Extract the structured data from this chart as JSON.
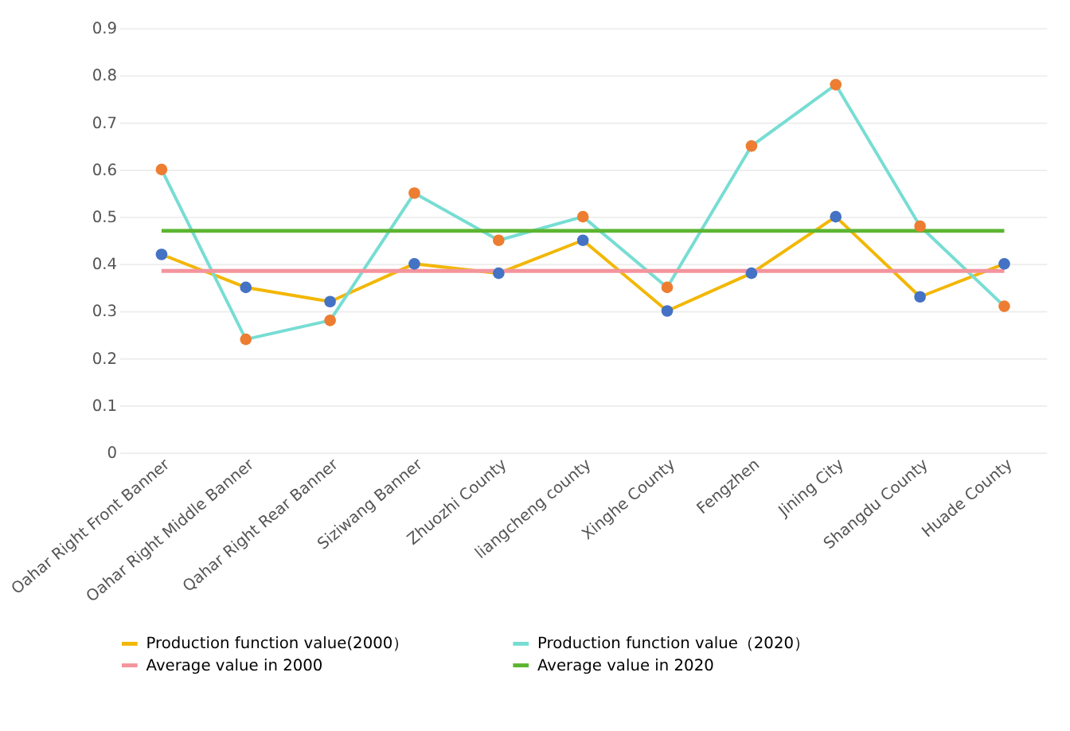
{
  "chart_data": {
    "type": "line",
    "categories": [
      "Oahar Right Front Banner",
      "Oahar Right Middle Banner",
      "Qahar Right Rear Banner",
      "Siziwang Banner",
      "Zhuozhi County",
      "liangcheng county",
      "Xinghe County",
      "Fengzhen",
      "Jining City",
      "Shangdu County",
      "Huade County"
    ],
    "series": [
      {
        "name": "Production function value(2000）",
        "color": "#f2b705",
        "colors": [
          "#4472c4",
          "#4472c4",
          "#4472c4",
          "#4472c4",
          "#4472c4",
          "#4472c4",
          "#4472c4",
          "#4472c4",
          "#4472c4",
          "#4472c4",
          "#4472c4"
        ],
        "values": [
          0.42,
          0.35,
          0.32,
          0.4,
          0.38,
          0.45,
          0.3,
          0.38,
          0.5,
          0.33,
          0.4
        ]
      },
      {
        "name": "Production function value（2020）",
        "color": "#77ddd3",
        "colors": [
          "#ed7d31",
          "#ed7d31",
          "#ed7d31",
          "#ed7d31",
          "#ed7d31",
          "#ed7d31",
          "#ed7d31",
          "#ed7d31",
          "#ed7d31",
          "#ed7d31",
          "#ed7d31"
        ],
        "values": [
          0.6,
          0.24,
          0.28,
          0.55,
          0.45,
          0.5,
          0.35,
          0.65,
          0.78,
          0.48,
          0.31
        ]
      }
    ],
    "ref_lines": [
      {
        "axis": "y",
        "value": 0.385,
        "label": "Average value in 2000",
        "color": "#f4949c"
      },
      {
        "axis": "y",
        "value": 0.47,
        "label": "Average value in 2020",
        "color": "#5cb531"
      }
    ],
    "ylim": [
      0,
      0.9
    ],
    "yticks": [
      0,
      0.1,
      0.2,
      0.3,
      0.4,
      0.5,
      0.6,
      0.7,
      0.8,
      0.9
    ],
    "grid": "y",
    "legend": "bottom",
    "marker": "circle",
    "line_style": "solid"
  }
}
